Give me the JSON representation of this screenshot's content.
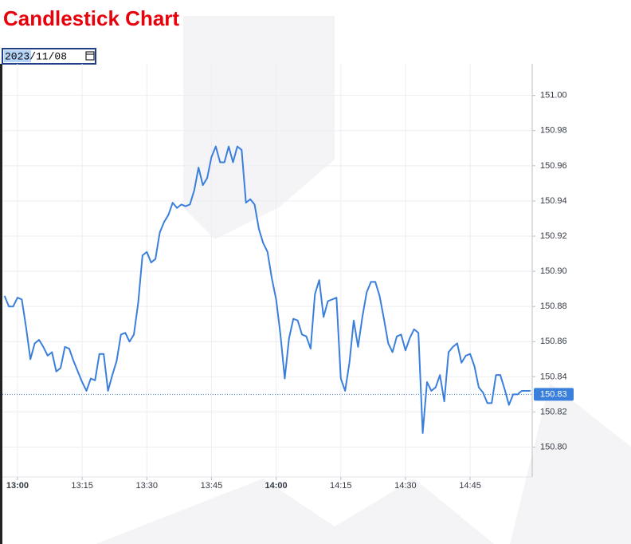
{
  "title": "Candlestick Chart",
  "date_input": "2023/11/08",
  "chart_data": {
    "type": "line",
    "color": "#3a7fdc",
    "grid": true,
    "x": [
      "12:57",
      "12:58",
      "12:59",
      "13:00",
      "13:01",
      "13:02",
      "13:03",
      "13:04",
      "13:05",
      "13:06",
      "13:07",
      "13:08",
      "13:09",
      "13:10",
      "13:11",
      "13:12",
      "13:13",
      "13:14",
      "13:15",
      "13:16",
      "13:17",
      "13:18",
      "13:19",
      "13:20",
      "13:21",
      "13:22",
      "13:23",
      "13:24",
      "13:25",
      "13:26",
      "13:27",
      "13:28",
      "13:29",
      "13:30",
      "13:31",
      "13:32",
      "13:33",
      "13:34",
      "13:35",
      "13:36",
      "13:37",
      "13:38",
      "13:39",
      "13:40",
      "13:41",
      "13:42",
      "13:43",
      "13:44",
      "13:45",
      "13:46",
      "13:47",
      "13:48",
      "13:49",
      "13:50",
      "13:51",
      "13:52",
      "13:53",
      "13:54",
      "13:55",
      "13:56",
      "13:57",
      "13:58",
      "13:59",
      "14:00",
      "14:01",
      "14:02",
      "14:03",
      "14:04",
      "14:05",
      "14:06",
      "14:07",
      "14:08",
      "14:09",
      "14:10",
      "14:11",
      "14:12",
      "14:13",
      "14:14",
      "14:15",
      "14:16",
      "14:17",
      "14:18",
      "14:19",
      "14:20",
      "14:21",
      "14:22",
      "14:23",
      "14:24",
      "14:25",
      "14:26",
      "14:27",
      "14:28",
      "14:29",
      "14:30",
      "14:31",
      "14:32",
      "14:33",
      "14:34",
      "14:35",
      "14:36",
      "14:37",
      "14:38",
      "14:39",
      "14:40",
      "14:41",
      "14:42",
      "14:43",
      "14:44",
      "14:45",
      "14:46",
      "14:47",
      "14:48",
      "14:49",
      "14:50",
      "14:51",
      "14:52",
      "14:53",
      "14:54",
      "14:55",
      "14:56",
      "14:57",
      "14:58",
      "14:59"
    ],
    "values": [
      150.886,
      150.88,
      150.88,
      150.885,
      150.884,
      150.868,
      150.85,
      150.859,
      150.861,
      150.857,
      150.852,
      150.854,
      150.843,
      150.845,
      150.857,
      150.856,
      150.849,
      150.843,
      150.837,
      150.832,
      150.839,
      150.838,
      150.853,
      150.853,
      150.832,
      150.841,
      150.849,
      150.864,
      150.865,
      150.86,
      150.864,
      150.882,
      150.909,
      150.911,
      150.905,
      150.907,
      150.922,
      150.928,
      150.932,
      150.939,
      150.936,
      150.938,
      150.937,
      150.938,
      150.946,
      150.959,
      150.949,
      150.953,
      150.965,
      150.971,
      150.962,
      150.962,
      150.971,
      150.962,
      150.971,
      150.969,
      150.939,
      150.941,
      150.938,
      150.924,
      150.916,
      150.911,
      150.896,
      150.884,
      150.864,
      150.839,
      150.862,
      150.873,
      150.872,
      150.864,
      150.863,
      150.856,
      150.887,
      150.895,
      150.874,
      150.883,
      150.884,
      150.885,
      150.839,
      150.832,
      150.848,
      150.872,
      150.857,
      150.874,
      150.888,
      150.894,
      150.894,
      150.886,
      150.873,
      150.859,
      150.854,
      150.863,
      150.864,
      150.855,
      150.862,
      150.867,
      150.865,
      150.808,
      150.837,
      150.832,
      150.834,
      150.841,
      150.826,
      150.854,
      150.857,
      150.859,
      150.848,
      150.852,
      150.853,
      150.846,
      150.834,
      150.831,
      150.825,
      150.825,
      150.841,
      150.841,
      150.833,
      150.824,
      150.83,
      150.83,
      150.832,
      150.832,
      150.832
    ],
    "last_price": 150.83,
    "xlim": [
      "12:56:30",
      "14:59:24"
    ],
    "xticks": [
      "13:00",
      "13:15",
      "13:30",
      "13:45",
      "14:00",
      "14:15",
      "14:30",
      "14:45"
    ],
    "ylim": [
      150.783,
      151.018
    ],
    "yticks": [
      {
        "value": 150.8,
        "label": "150.80"
      },
      150.82,
      150.84,
      150.86,
      150.88,
      {
        "value": 150.9,
        "label": "150.90"
      },
      150.92,
      150.94,
      150.96,
      150.98,
      {
        "value": 151,
        "label": "151.00"
      }
    ]
  }
}
